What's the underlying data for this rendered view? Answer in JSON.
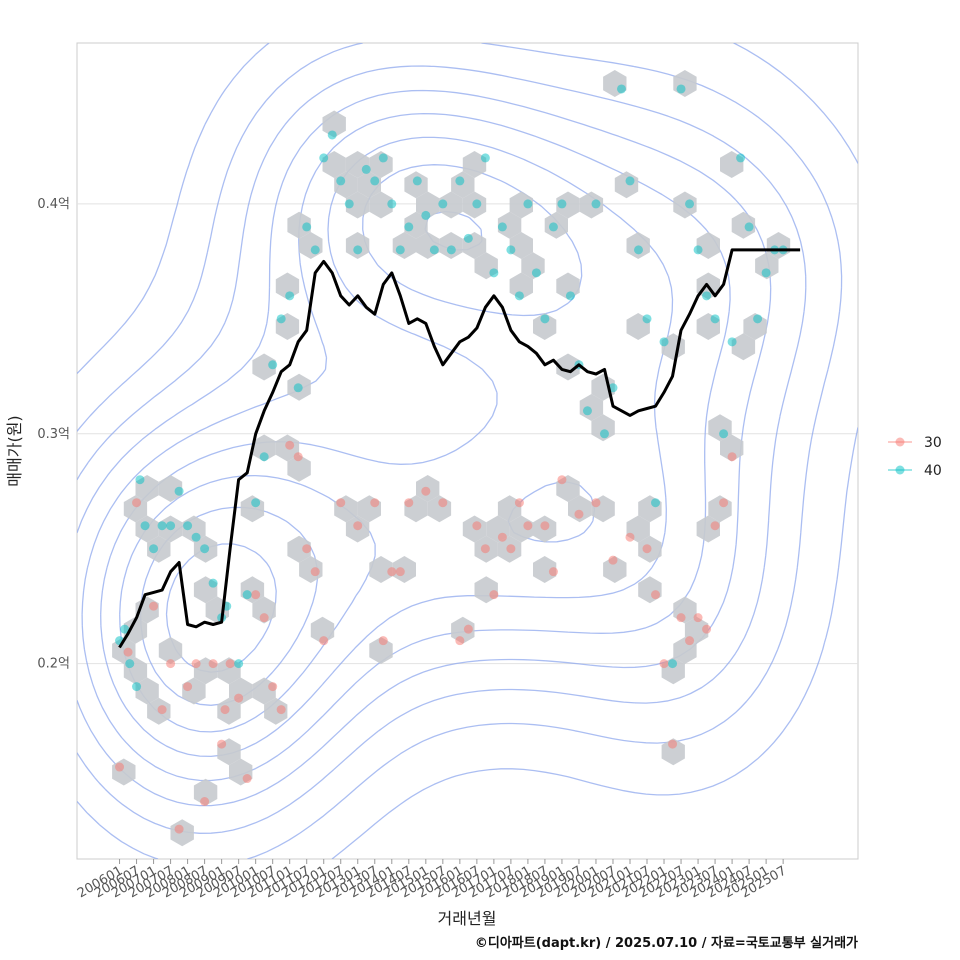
{
  "chart_data": {
    "type": "scatter",
    "xlabel": "거래년월",
    "ylabel": "매매가(원)",
    "caption": "©디아파트(dapt.kr) / 2025.07.10 / 자료=국토교통부 실거래가",
    "x_tick_labels": [
      "200601",
      "200607",
      "200701",
      "200707",
      "200801",
      "200807",
      "200901",
      "200907",
      "201001",
      "201007",
      "201101",
      "201107",
      "201201",
      "201207",
      "201301",
      "201307",
      "201401",
      "201407",
      "201501",
      "201507",
      "201601",
      "201607",
      "201701",
      "201707",
      "201801",
      "201807",
      "201901",
      "201907",
      "202001",
      "202007",
      "202101",
      "202107",
      "202201",
      "202207",
      "202301",
      "202307",
      "202401",
      "202407",
      "202501",
      "202507"
    ],
    "y_ticks": [
      {
        "value": 0.2,
        "label": "0.2억"
      },
      {
        "value": 0.3,
        "label": "0.3억"
      },
      {
        "value": 0.4,
        "label": "0.4억"
      }
    ],
    "ylim": [
      0.115,
      0.47
    ],
    "xlim": [
      -2.5,
      43.4
    ],
    "grid": true,
    "legend": {
      "position": "right",
      "entries": [
        {
          "label": "30",
          "color": "#F8766D"
        },
        {
          "label": "40",
          "color": "#00BFC4"
        }
      ]
    },
    "trend_line": {
      "color": "#000000",
      "x_index": [
        0,
        0.5,
        1,
        1.5,
        2,
        2.5,
        3,
        3.5,
        4,
        4.5,
        5,
        5.5,
        6,
        6.5,
        7,
        7.5,
        8,
        8.5,
        9,
        9.5,
        10,
        10.5,
        11,
        11.5,
        12,
        12.5,
        13,
        13.5,
        14,
        14.5,
        15,
        15.5,
        16,
        16.5,
        17,
        17.5,
        18,
        18.5,
        19,
        19.5,
        20,
        20.5,
        21,
        21.5,
        22,
        22.5,
        23,
        23.5,
        24,
        24.5,
        25,
        25.5,
        26,
        26.5,
        27,
        27.5,
        28,
        28.5,
        29,
        29.5,
        30,
        30.5,
        31,
        31.5,
        32,
        32.5,
        33,
        33.5,
        34,
        34.5,
        35,
        35.5,
        36,
        36.5,
        37,
        37.5,
        38,
        38.5,
        39,
        39.5,
        40
      ],
      "y": [
        0.207,
        0.213,
        0.22,
        0.23,
        0.231,
        0.232,
        0.24,
        0.244,
        0.217,
        0.216,
        0.218,
        0.217,
        0.218,
        0.25,
        0.28,
        0.283,
        0.3,
        0.31,
        0.318,
        0.327,
        0.33,
        0.34,
        0.345,
        0.37,
        0.375,
        0.37,
        0.36,
        0.356,
        0.36,
        0.355,
        0.352,
        0.365,
        0.37,
        0.36,
        0.348,
        0.35,
        0.348,
        0.338,
        0.33,
        0.335,
        0.34,
        0.342,
        0.346,
        0.355,
        0.36,
        0.355,
        0.345,
        0.34,
        0.338,
        0.335,
        0.33,
        0.332,
        0.328,
        0.327,
        0.33,
        0.327,
        0.326,
        0.328,
        0.312,
        0.31,
        0.308,
        0.31,
        0.311,
        0.312,
        0.318,
        0.325,
        0.345,
        0.352,
        0.36,
        0.365,
        0.36,
        0.365,
        0.38,
        0.38,
        0.38,
        0.38,
        0.38,
        0.38,
        0.38,
        0.38,
        0.38
      ]
    },
    "series": [
      {
        "name": "30",
        "color": "#F8766D",
        "points": [
          [
            0,
            0.155
          ],
          [
            0.5,
            0.205
          ],
          [
            1,
            0.27
          ],
          [
            2,
            0.225
          ],
          [
            2.5,
            0.18
          ],
          [
            3,
            0.2
          ],
          [
            3.5,
            0.128
          ],
          [
            4,
            0.19
          ],
          [
            4.5,
            0.2
          ],
          [
            5,
            0.14
          ],
          [
            5.5,
            0.2
          ],
          [
            6,
            0.165
          ],
          [
            6.2,
            0.18
          ],
          [
            6.5,
            0.2
          ],
          [
            7,
            0.185
          ],
          [
            7.5,
            0.15
          ],
          [
            8,
            0.23
          ],
          [
            8.5,
            0.22
          ],
          [
            9,
            0.19
          ],
          [
            9.5,
            0.18
          ],
          [
            10,
            0.295
          ],
          [
            10.5,
            0.29
          ],
          [
            11,
            0.25
          ],
          [
            11.5,
            0.24
          ],
          [
            12,
            0.21
          ],
          [
            13,
            0.27
          ],
          [
            14,
            0.26
          ],
          [
            15,
            0.27
          ],
          [
            15.5,
            0.21
          ],
          [
            16,
            0.24
          ],
          [
            16.5,
            0.24
          ],
          [
            17,
            0.27
          ],
          [
            18,
            0.275
          ],
          [
            19,
            0.27
          ],
          [
            20,
            0.21
          ],
          [
            20.5,
            0.215
          ],
          [
            21,
            0.26
          ],
          [
            21.5,
            0.25
          ],
          [
            22,
            0.23
          ],
          [
            22.5,
            0.255
          ],
          [
            23,
            0.25
          ],
          [
            23.5,
            0.27
          ],
          [
            24,
            0.26
          ],
          [
            25,
            0.26
          ],
          [
            25.5,
            0.24
          ],
          [
            26,
            0.28
          ],
          [
            27,
            0.265
          ],
          [
            28,
            0.27
          ],
          [
            29,
            0.245
          ],
          [
            30,
            0.255
          ],
          [
            31,
            0.25
          ],
          [
            31.5,
            0.23
          ],
          [
            32,
            0.2
          ],
          [
            32.5,
            0.165
          ],
          [
            33,
            0.22
          ],
          [
            33.5,
            0.21
          ],
          [
            34,
            0.22
          ],
          [
            34.5,
            0.215
          ],
          [
            35,
            0.26
          ],
          [
            35.5,
            0.27
          ],
          [
            36,
            0.29
          ]
        ]
      },
      {
        "name": "40",
        "color": "#00BFC4",
        "points": [
          [
            0,
            0.21
          ],
          [
            0.3,
            0.215
          ],
          [
            0.6,
            0.2
          ],
          [
            1,
            0.19
          ],
          [
            1.2,
            0.28
          ],
          [
            1.5,
            0.26
          ],
          [
            2,
            0.25
          ],
          [
            2.5,
            0.26
          ],
          [
            3,
            0.26
          ],
          [
            3.5,
            0.275
          ],
          [
            4,
            0.26
          ],
          [
            4.5,
            0.255
          ],
          [
            5,
            0.25
          ],
          [
            5.5,
            0.235
          ],
          [
            6,
            0.22
          ],
          [
            6.3,
            0.225
          ],
          [
            7,
            0.2
          ],
          [
            7.5,
            0.23
          ],
          [
            8,
            0.27
          ],
          [
            8.5,
            0.29
          ],
          [
            9,
            0.33
          ],
          [
            9.5,
            0.35
          ],
          [
            10,
            0.36
          ],
          [
            10.5,
            0.32
          ],
          [
            11,
            0.39
          ],
          [
            11.5,
            0.38
          ],
          [
            12,
            0.42
          ],
          [
            12.5,
            0.43
          ],
          [
            13,
            0.41
          ],
          [
            13.5,
            0.4
          ],
          [
            14,
            0.38
          ],
          [
            14.5,
            0.415
          ],
          [
            15,
            0.41
          ],
          [
            15.5,
            0.42
          ],
          [
            16,
            0.4
          ],
          [
            16.5,
            0.38
          ],
          [
            17,
            0.39
          ],
          [
            17.5,
            0.41
          ],
          [
            18,
            0.395
          ],
          [
            18.5,
            0.38
          ],
          [
            19,
            0.4
          ],
          [
            19.5,
            0.38
          ],
          [
            20,
            0.41
          ],
          [
            20.5,
            0.385
          ],
          [
            21,
            0.4
          ],
          [
            21.5,
            0.42
          ],
          [
            22,
            0.37
          ],
          [
            22.5,
            0.39
          ],
          [
            23,
            0.38
          ],
          [
            23.5,
            0.36
          ],
          [
            24,
            0.4
          ],
          [
            24.5,
            0.37
          ],
          [
            25,
            0.35
          ],
          [
            25.5,
            0.39
          ],
          [
            26,
            0.4
          ],
          [
            26.5,
            0.36
          ],
          [
            27,
            0.33
          ],
          [
            27.5,
            0.31
          ],
          [
            28,
            0.4
          ],
          [
            28.5,
            0.3
          ],
          [
            29,
            0.32
          ],
          [
            29.5,
            0.45
          ],
          [
            30,
            0.41
          ],
          [
            30.5,
            0.38
          ],
          [
            31,
            0.35
          ],
          [
            31.5,
            0.27
          ],
          [
            32,
            0.34
          ],
          [
            32.5,
            0.2
          ],
          [
            33,
            0.45
          ],
          [
            33.5,
            0.4
          ],
          [
            34,
            0.38
          ],
          [
            34.5,
            0.36
          ],
          [
            35,
            0.35
          ],
          [
            35.5,
            0.3
          ],
          [
            36,
            0.34
          ],
          [
            36.5,
            0.42
          ],
          [
            37,
            0.39
          ],
          [
            37.5,
            0.35
          ],
          [
            38,
            0.37
          ],
          [
            38.5,
            0.38
          ],
          [
            39,
            0.38
          ]
        ]
      }
    ]
  }
}
